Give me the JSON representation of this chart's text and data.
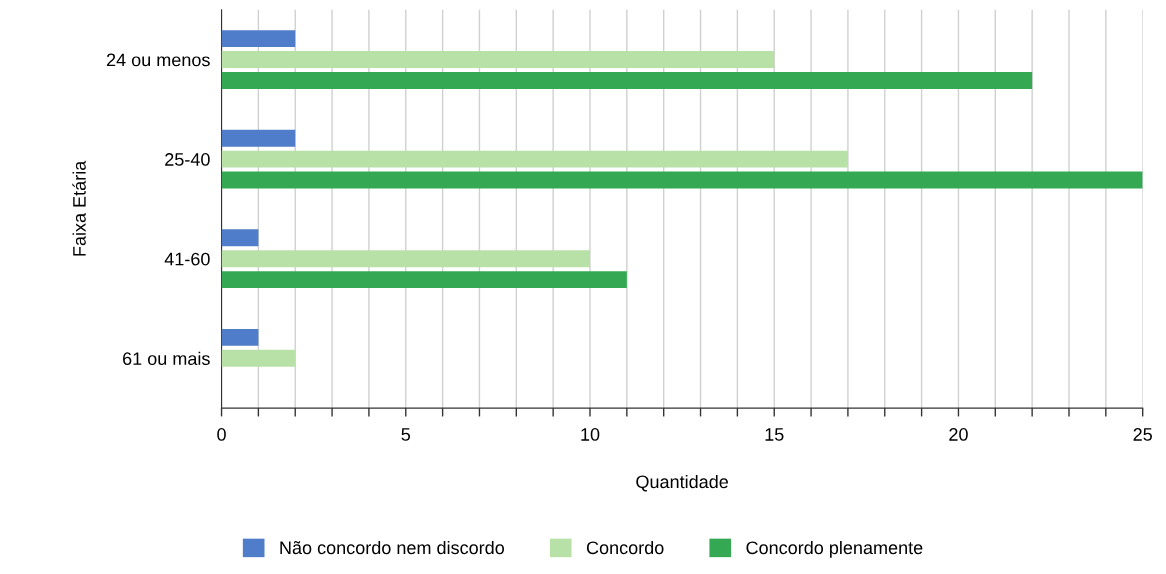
{
  "chart_data": {
    "type": "bar",
    "orientation": "horizontal",
    "xlabel": "Quantidade",
    "ylabel": "Faixa Etária",
    "categories": [
      "24 ou menos",
      "25-40",
      "41-60",
      "61 ou mais"
    ],
    "series": [
      {
        "name": "Não concordo nem discordo",
        "color": "#4f7dc9",
        "values": [
          2,
          2,
          1,
          1
        ]
      },
      {
        "name": "Concordo",
        "color": "#b7e1a7",
        "values": [
          15,
          17,
          10,
          2
        ]
      },
      {
        "name": "Concordo plenamente",
        "color": "#34a853",
        "values": [
          22,
          25,
          11,
          0
        ]
      }
    ],
    "xlim": [
      0,
      25
    ],
    "xticks": [
      0,
      {
        "value": 1,
        "label": null
      },
      {
        "value": 2,
        "label": null
      },
      {
        "value": 3,
        "label": null
      },
      {
        "value": 4,
        "label": null
      },
      5,
      {
        "value": 6,
        "label": null
      },
      {
        "value": 7,
        "label": null
      },
      {
        "value": 8,
        "label": null
      },
      {
        "value": 9,
        "label": null
      },
      10,
      {
        "value": 11,
        "label": null
      },
      {
        "value": 12,
        "label": null
      },
      {
        "value": 13,
        "label": null
      },
      {
        "value": 14,
        "label": null
      },
      15,
      {
        "value": 16,
        "label": null
      },
      {
        "value": 17,
        "label": null
      },
      {
        "value": 18,
        "label": null
      },
      {
        "value": 19,
        "label": null
      },
      20,
      {
        "value": 21,
        "label": null
      },
      {
        "value": 22,
        "label": null
      },
      {
        "value": 23,
        "label": null
      },
      {
        "value": 24,
        "label": null
      },
      25
    ],
    "grid": "x",
    "legend": "bottom"
  }
}
